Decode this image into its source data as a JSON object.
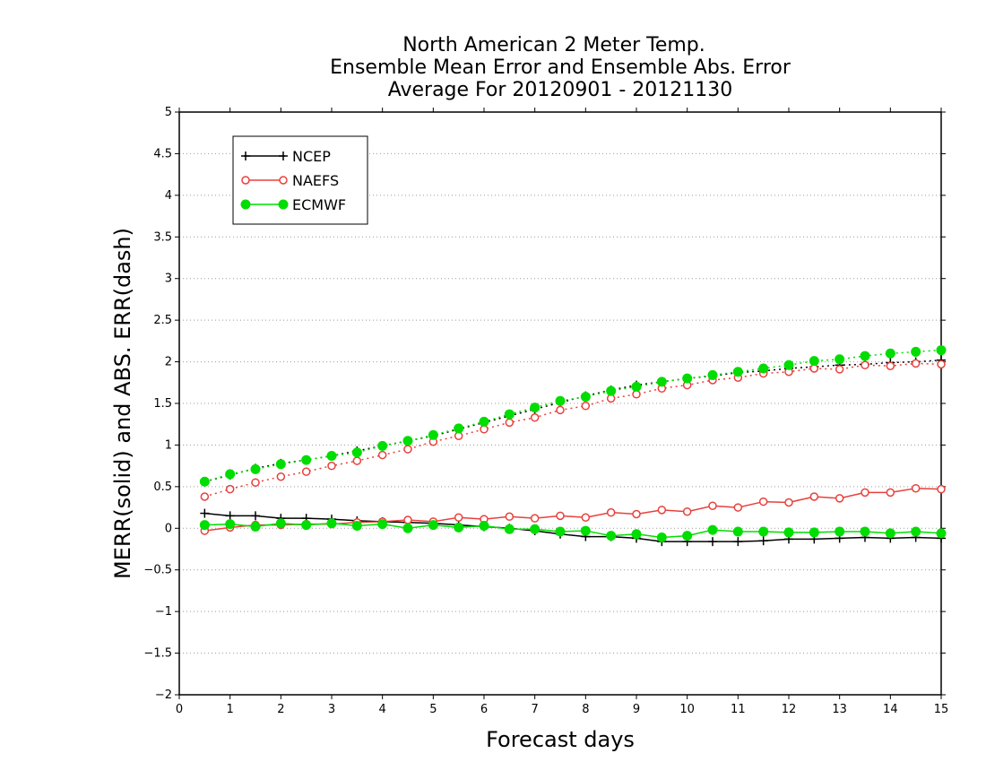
{
  "chart_data": {
    "type": "line",
    "title": [
      "North American 2 Meter Temp.",
      "Ensemble Mean Error and Ensemble Abs. Error",
      "Average For 20120901 - 20121130"
    ],
    "xlabel": "Forecast days",
    "ylabel": "MERR(solid) and ABS. ERR(dash)",
    "xlim": [
      0,
      15
    ],
    "ylim": [
      -2,
      5
    ],
    "x_ticks": [
      "0",
      "1",
      "2",
      "3",
      "4",
      "5",
      "6",
      "7",
      "8",
      "9",
      "10",
      "11",
      "12",
      "13",
      "14",
      "15"
    ],
    "y_ticks": [
      "−2",
      "−1.5",
      "−1",
      "−0.5",
      "0",
      "0.5",
      "1",
      "1.5",
      "2",
      "2.5",
      "3",
      "3.5",
      "4",
      "4.5",
      "5"
    ],
    "grid": true,
    "legend_position": "top-left",
    "x": [
      0.5,
      1,
      1.5,
      2,
      2.5,
      3,
      3.5,
      4,
      4.5,
      5,
      5.5,
      6,
      6.5,
      7,
      7.5,
      8,
      8.5,
      9,
      9.5,
      10,
      10.5,
      11,
      11.5,
      12,
      12.5,
      13,
      13.5,
      14,
      14.5,
      15
    ],
    "series": [
      {
        "name": "NCEP",
        "color": "#000000",
        "marker": "plus",
        "merr": [
          0.18,
          0.15,
          0.15,
          0.12,
          0.12,
          0.11,
          0.09,
          0.08,
          0.07,
          0.06,
          0.04,
          0.02,
          0.0,
          -0.03,
          -0.07,
          -0.1,
          -0.1,
          -0.12,
          -0.16,
          -0.16,
          -0.16,
          -0.16,
          -0.15,
          -0.13,
          -0.13,
          -0.12,
          -0.11,
          -0.12,
          -0.11,
          -0.12
        ],
        "abs_err": [
          0.56,
          0.64,
          0.72,
          0.78,
          0.82,
          0.87,
          0.93,
          0.99,
          1.05,
          1.11,
          1.19,
          1.27,
          1.35,
          1.43,
          1.51,
          1.59,
          1.66,
          1.72,
          1.76,
          1.8,
          1.83,
          1.87,
          1.89,
          1.92,
          1.94,
          1.96,
          1.97,
          1.99,
          2.0,
          2.02
        ]
      },
      {
        "name": "NAEFS",
        "color": "#e8403c",
        "marker": "open-circle",
        "merr": [
          -0.03,
          0.01,
          0.04,
          0.04,
          0.05,
          0.05,
          0.07,
          0.08,
          0.1,
          0.08,
          0.13,
          0.11,
          0.14,
          0.12,
          0.15,
          0.13,
          0.19,
          0.17,
          0.22,
          0.2,
          0.27,
          0.25,
          0.32,
          0.31,
          0.38,
          0.36,
          0.43,
          0.43,
          0.48,
          0.47
        ],
        "abs_err": [
          0.38,
          0.47,
          0.55,
          0.62,
          0.68,
          0.75,
          0.81,
          0.88,
          0.95,
          1.04,
          1.11,
          1.19,
          1.27,
          1.33,
          1.42,
          1.47,
          1.56,
          1.61,
          1.68,
          1.72,
          1.78,
          1.81,
          1.86,
          1.88,
          1.92,
          1.91,
          1.96,
          1.95,
          1.98,
          1.97
        ]
      },
      {
        "name": "ECMWF",
        "color": "#00dd00",
        "marker": "filled-circle",
        "merr": [
          0.04,
          0.05,
          0.02,
          0.06,
          0.04,
          0.06,
          0.03,
          0.05,
          0.0,
          0.04,
          0.01,
          0.03,
          -0.01,
          -0.01,
          -0.04,
          -0.03,
          -0.09,
          -0.07,
          -0.11,
          -0.09,
          -0.02,
          -0.04,
          -0.04,
          -0.05,
          -0.05,
          -0.04,
          -0.04,
          -0.06,
          -0.04,
          -0.06
        ],
        "abs_err": [
          0.56,
          0.65,
          0.71,
          0.77,
          0.82,
          0.87,
          0.91,
          0.99,
          1.05,
          1.12,
          1.2,
          1.28,
          1.37,
          1.45,
          1.53,
          1.58,
          1.65,
          1.7,
          1.76,
          1.8,
          1.84,
          1.88,
          1.92,
          1.96,
          2.01,
          2.03,
          2.07,
          2.1,
          2.12,
          2.14
        ]
      }
    ]
  }
}
